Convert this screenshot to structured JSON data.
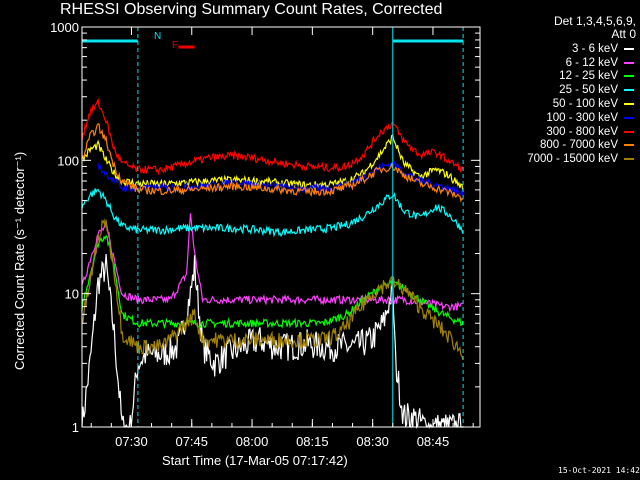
{
  "title": "RHESSI Observing Summary Count Rates, Corrected",
  "detectors": "Det 1,3,4,5,6,9,",
  "attenuator": "Att 0",
  "timestamp": "15-Oct-2021 14:42",
  "flags": {
    "night": "N",
    "flare": "F"
  },
  "colors": {
    "night": "#00e5ee",
    "flare": "#ee0000"
  },
  "chart_data": {
    "type": "line",
    "title": "RHESSI Observing Summary Count Rates, Corrected",
    "xlabel": "Start Time (17-Mar-05 07:17:42)",
    "ylabel": "Corrected Count Rate (s⁻¹ detector⁻¹)",
    "yscale": "log",
    "ylim": [
      1,
      1000
    ],
    "xlim_minutes": [
      0,
      99
    ],
    "x_ticks": [
      {
        "label": "07:30",
        "minute": 12.3
      },
      {
        "label": "07:45",
        "minute": 27.3
      },
      {
        "label": "08:00",
        "minute": 42.3
      },
      {
        "label": "08:15",
        "minute": 57.3
      },
      {
        "label": "08:30",
        "minute": 72.3
      },
      {
        "label": "08:45",
        "minute": 87.3
      }
    ],
    "y_ticks": [
      {
        "label": "1",
        "value": 1
      },
      {
        "label": "10",
        "value": 10
      },
      {
        "label": "100",
        "value": 100
      },
      {
        "label": "1000",
        "value": 1000
      }
    ],
    "night_boundaries_minutes": [
      13.9,
      77.3,
      94.8
    ],
    "bars": [
      {
        "type": "night",
        "from": 0,
        "to": 13.9
      },
      {
        "type": "night",
        "from": 77.3,
        "to": 94.8
      },
      {
        "type": "flare",
        "from": 24,
        "to": 28
      }
    ],
    "series": [
      {
        "name": "3 - 6 keV",
        "color": "#ffffff",
        "x": [
          0,
          2,
          4,
          6,
          8,
          10,
          12,
          13.9,
          16,
          20,
          24,
          27,
          28,
          30,
          33,
          36,
          40,
          44,
          48,
          52,
          56,
          60,
          64,
          68,
          72,
          75,
          77.3,
          78,
          80,
          82,
          86,
          90,
          94.8
        ],
        "y": [
          1,
          3,
          12,
          16,
          5,
          1,
          1,
          3,
          3.5,
          3.5,
          4,
          10,
          16,
          4,
          3,
          3.5,
          4,
          4.5,
          4,
          4,
          4.2,
          4,
          4,
          4,
          4.5,
          6,
          11,
          3,
          1.2,
          1.2,
          1,
          1,
          1
        ]
      },
      {
        "name": "6 - 12 keV",
        "color": "#ff40ff",
        "x": [
          0,
          2,
          4,
          6,
          8,
          10,
          13.9,
          18,
          22,
          26,
          27,
          28,
          30,
          34,
          40,
          46,
          52,
          58,
          64,
          70,
          76,
          77.3,
          80,
          86,
          90,
          94.8
        ],
        "y": [
          11,
          18,
          28,
          32,
          18,
          10,
          9,
          9,
          9,
          14,
          40,
          20,
          9,
          9,
          9,
          9,
          9,
          9,
          9,
          9,
          9,
          9,
          9,
          8.5,
          8,
          8
        ]
      },
      {
        "name": "12 - 25 keV",
        "color": "#00ff00",
        "x": [
          0,
          2,
          4,
          6,
          8,
          10,
          13.9,
          20,
          30,
          40,
          50,
          60,
          66,
          70,
          74,
          77.3,
          80,
          84,
          88,
          92,
          94.8
        ],
        "y": [
          8,
          14,
          24,
          28,
          16,
          7,
          6,
          6,
          6,
          6,
          6,
          6,
          7,
          9,
          11,
          12,
          11,
          9,
          7.5,
          6.5,
          6
        ]
      },
      {
        "name": "25 - 50 keV",
        "color": "#00ffff",
        "x": [
          0,
          2,
          4,
          6,
          8,
          10,
          13.9,
          20,
          26,
          32,
          38,
          44,
          50,
          56,
          62,
          66,
          70,
          74,
          77.3,
          80,
          84,
          88,
          91,
          94.8
        ],
        "y": [
          45,
          55,
          60,
          50,
          38,
          32,
          30,
          30,
          31,
          31,
          31,
          30,
          29,
          30,
          31,
          33,
          38,
          47,
          56,
          42,
          37,
          45,
          40,
          30
        ]
      },
      {
        "name": "50 - 100 keV",
        "color": "#ffff00",
        "x": [
          0,
          2,
          4,
          6,
          8,
          10,
          13.9,
          20,
          26,
          32,
          38,
          44,
          50,
          56,
          62,
          66,
          70,
          74,
          77.3,
          80,
          84,
          88,
          91,
          94.8
        ],
        "y": [
          100,
          120,
          130,
          100,
          80,
          70,
          67,
          66,
          68,
          70,
          71,
          70,
          67,
          65,
          66,
          70,
          80,
          110,
          150,
          95,
          75,
          85,
          78,
          62
        ]
      },
      {
        "name": "100 - 300 keV",
        "color": "#0000ff",
        "x": [
          4,
          6,
          8,
          10,
          13.9,
          20,
          26,
          32,
          38,
          44,
          50,
          56,
          62,
          66,
          70,
          74,
          77.3,
          80,
          84,
          88,
          91,
          94.8
        ],
        "y": [
          90,
          80,
          70,
          62,
          62,
          62,
          63,
          65,
          68,
          66,
          63,
          61,
          62,
          66,
          75,
          88,
          95,
          82,
          70,
          66,
          62,
          56
        ]
      },
      {
        "name": "300 - 800 keV",
        "color": "#ff0000",
        "x": [
          0,
          2,
          4,
          6,
          8,
          10,
          13.9,
          20,
          26,
          32,
          38,
          42,
          46,
          50,
          56,
          62,
          66,
          70,
          74,
          77.3,
          80,
          84,
          88,
          91,
          94.8
        ],
        "y": [
          150,
          230,
          270,
          200,
          120,
          95,
          85,
          85,
          95,
          105,
          108,
          105,
          100,
          95,
          90,
          88,
          90,
          110,
          160,
          190,
          140,
          110,
          115,
          100,
          85
        ]
      },
      {
        "name": "800 - 7000 keV",
        "color": "#ff8000",
        "x": [
          0,
          2,
          4,
          6,
          8,
          10,
          13.9,
          20,
          26,
          32,
          38,
          44,
          50,
          56,
          62,
          66,
          70,
          74,
          77.3,
          80,
          84,
          88,
          91,
          94.8
        ],
        "y": [
          100,
          150,
          180,
          140,
          90,
          70,
          60,
          59,
          60,
          62,
          64,
          62,
          60,
          58,
          59,
          63,
          72,
          85,
          90,
          78,
          67,
          62,
          58,
          52
        ]
      },
      {
        "name": "7000 - 15000 keV",
        "color": "#a08000",
        "x": [
          0,
          2,
          4,
          6,
          8,
          10,
          13.9,
          20,
          26,
          28,
          30,
          36,
          42,
          48,
          54,
          60,
          64,
          68,
          72,
          76,
          77.3,
          80,
          84,
          88,
          92,
          94.8
        ],
        "y": [
          6,
          12,
          26,
          36,
          15,
          5,
          4,
          4,
          6,
          7,
          4.5,
          4.5,
          4.5,
          4.5,
          4.5,
          4.5,
          5,
          7,
          10,
          12,
          12,
          11,
          8,
          6,
          4.5,
          3.5
        ]
      }
    ]
  }
}
